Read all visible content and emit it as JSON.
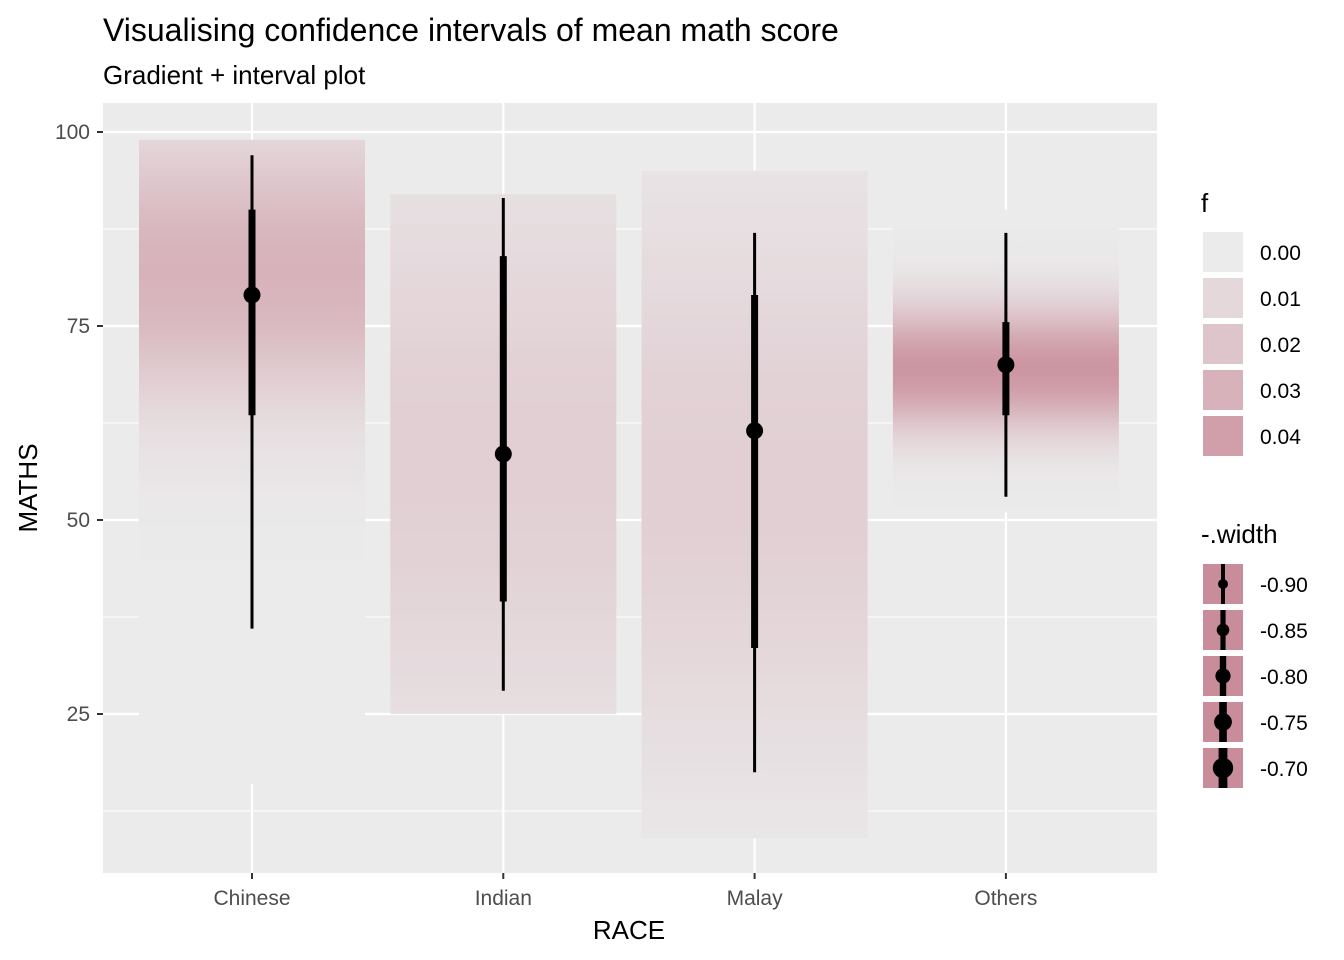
{
  "chart_data": {
    "type": "gradient-interval",
    "title": "Visualising confidence intervals of mean math score",
    "subtitle": "Gradient + interval plot",
    "xlabel": "RACE",
    "ylabel": "MATHS",
    "categories": [
      "Chinese",
      "Indian",
      "Malay",
      "Others"
    ],
    "ylim": [
      5,
      101
    ],
    "y_ticks": [
      25,
      50,
      75,
      100
    ],
    "grid": true,
    "colors": {
      "panel": "#ebebeb",
      "grid": "#ffffff",
      "gradient": "#c98c9a",
      "interval": "#000000"
    },
    "series": [
      {
        "category": "Chinese",
        "point": 79,
        "inner": [
          63.5,
          90
        ],
        "outer": [
          36,
          97
        ],
        "range": [
          16,
          99
        ],
        "density_peak": 82,
        "density_spread": 12,
        "peak_f": 0.03
      },
      {
        "category": "Indian",
        "point": 58.5,
        "inner": [
          39.5,
          84
        ],
        "outer": [
          28,
          91.5
        ],
        "range": [
          25,
          92
        ],
        "density_peak": 58,
        "density_spread": 25,
        "peak_f": 0.015
      },
      {
        "category": "Malay",
        "point": 61.5,
        "inner": [
          33.5,
          79
        ],
        "outer": [
          17.5,
          87
        ],
        "range": [
          9,
          95
        ],
        "density_peak": 55,
        "density_spread": 25,
        "peak_f": 0.015
      },
      {
        "category": "Others",
        "point": 70,
        "inner": [
          63.5,
          75.5
        ],
        "outer": [
          53,
          87
        ],
        "range": [
          51,
          90
        ],
        "density_peak": 69.5,
        "density_spread": 5.5,
        "peak_f": 0.045
      }
    ],
    "legend_f": {
      "title": "f",
      "position": "right",
      "labels": [
        "0.00",
        "0.01",
        "0.02",
        "0.03",
        "0.04"
      ],
      "values": [
        0.0,
        0.01,
        0.02,
        0.03,
        0.04
      ]
    },
    "legend_width": {
      "title": "-.width",
      "position": "right",
      "labels": [
        "-0.90",
        "-0.85",
        "-0.80",
        "-0.75",
        "-0.70"
      ],
      "values": [
        -0.9,
        -0.85,
        -0.8,
        -0.75,
        -0.7
      ]
    }
  }
}
